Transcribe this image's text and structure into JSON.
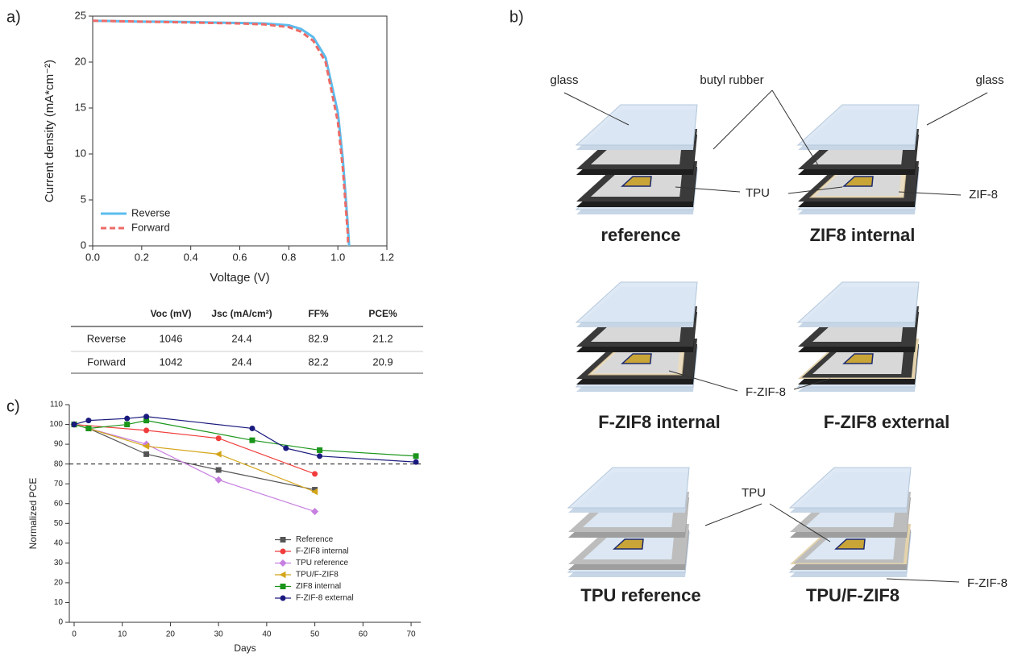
{
  "chart_data": [
    {
      "type": "line",
      "panel_label": "a)",
      "x_label": "Voltage (V)",
      "y_label": "Current density (mA*cm⁻²)",
      "xlim": [
        0,
        1.2
      ],
      "ylim": [
        0,
        25
      ],
      "xticks": [
        {
          "value": 0,
          "label": "0.0"
        },
        0.2,
        0.4,
        0.6,
        0.8,
        {
          "value": 1,
          "label": "1.0"
        },
        1.2
      ],
      "yticks": [
        0,
        5,
        10,
        15,
        20,
        25
      ],
      "legend": "lower left",
      "box": true,
      "series": [
        {
          "name": "Reverse",
          "color": "#5bbcee",
          "dash": false,
          "marker": "none",
          "x": [
            0,
            0.1,
            0.2,
            0.3,
            0.4,
            0.5,
            0.6,
            0.7,
            0.8,
            0.85,
            0.9,
            0.95,
            1.0,
            1.02,
            1.04,
            1.046
          ],
          "values": [
            24.5,
            24.45,
            24.4,
            24.4,
            24.35,
            24.3,
            24.25,
            24.2,
            24.0,
            23.6,
            22.7,
            20.5,
            14.5,
            9.5,
            2.5,
            0
          ]
        },
        {
          "name": "Forward",
          "color": "#ec6b67",
          "dash": true,
          "marker": "none",
          "x": [
            0,
            0.1,
            0.2,
            0.3,
            0.4,
            0.5,
            0.6,
            0.7,
            0.8,
            0.85,
            0.9,
            0.95,
            1.0,
            1.02,
            1.04,
            1.042
          ],
          "values": [
            24.5,
            24.45,
            24.4,
            24.35,
            24.3,
            24.25,
            24.2,
            24.1,
            23.8,
            23.3,
            22.3,
            20.0,
            13.5,
            8.5,
            1.5,
            0
          ]
        }
      ]
    },
    {
      "type": "line",
      "panel_label": "c)",
      "x_label": "Days",
      "y_label": "Normalized PCE",
      "xlim": [
        -1,
        72
      ],
      "ylim": [
        0,
        110
      ],
      "xticks": [
        0,
        10,
        20,
        30,
        40,
        50,
        60,
        70
      ],
      "yticks": [
        0,
        10,
        20,
        30,
        40,
        50,
        60,
        70,
        80,
        90,
        100,
        110
      ],
      "legend": "lower right",
      "box": false,
      "reference_line": 80,
      "series": [
        {
          "name": "Reference",
          "color": "#555555",
          "marker": "square",
          "x": [
            0,
            3,
            15,
            30,
            50
          ],
          "values": [
            100,
            98,
            85,
            77,
            67
          ]
        },
        {
          "name": "F-ZIF8 internal",
          "color": "#f03c3c",
          "marker": "circle",
          "x": [
            0,
            15,
            30,
            50
          ],
          "values": [
            100,
            97,
            93,
            75
          ]
        },
        {
          "name": "TPU reference",
          "color": "#c77fe0",
          "marker": "diamond",
          "x": [
            0,
            15,
            30,
            50
          ],
          "values": [
            100,
            90,
            72,
            56
          ]
        },
        {
          "name": "TPU/F-ZIF8",
          "color": "#d4a519",
          "marker": "triangle",
          "x": [
            0,
            3,
            15,
            30,
            50
          ],
          "values": [
            100,
            98,
            89,
            85,
            66
          ]
        },
        {
          "name": "ZIF8 internal",
          "color": "#1a951a",
          "marker": "square",
          "x": [
            0,
            3,
            11,
            15,
            37,
            51,
            71
          ],
          "values": [
            100,
            98,
            100,
            102,
            92,
            87,
            84
          ]
        },
        {
          "name": "F-ZIF-8 external",
          "color": "#1a1a7e",
          "marker": "circle",
          "x": [
            0,
            3,
            11,
            15,
            37,
            44,
            51,
            71
          ],
          "values": [
            100,
            102,
            103,
            104,
            98,
            88,
            84,
            81
          ]
        }
      ]
    }
  ],
  "table": {
    "columns": [
      "Voc (mV)",
      "Jsc (mA/cm²)",
      "FF%",
      "PCE%"
    ],
    "rows": [
      {
        "label": "Reverse",
        "cells": [
          "1046",
          "24.4",
          "82.9",
          "21.2"
        ]
      },
      {
        "label": "Forward",
        "cells": [
          "1042",
          "24.4",
          "82.2",
          "20.9"
        ]
      }
    ]
  },
  "diagram": {
    "panel_label": "b)",
    "titles": [
      "reference",
      "ZIF8 internal",
      "F-ZIF8 internal",
      "F-ZIF8 external",
      "TPU reference",
      "TPU/F-ZIF8"
    ],
    "callouts": [
      "glass",
      "butyl rubber",
      "glass",
      "TPU",
      "ZIF-8",
      "F-ZIF-8",
      "TPU",
      "F-ZIF-8"
    ]
  }
}
